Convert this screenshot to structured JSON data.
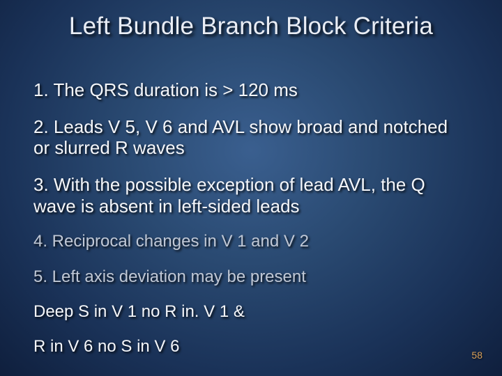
{
  "title": {
    "text": "Left Bundle Branch Block Criteria",
    "color": "#e9edf5",
    "fontsize": 35
  },
  "items": [
    {
      "text": "1. The QRS duration is > 120 ms",
      "emphasis": "bright",
      "fontsize": 26
    },
    {
      "text": "2. Leads V 5, V 6 and AVL show broad and notched or slurred R waves",
      "emphasis": "bright",
      "fontsize": 26
    },
    {
      "text": "3. With the possible exception of lead AVL, the Q wave is absent in left-sided leads",
      "emphasis": "bright",
      "fontsize": 26
    },
    {
      "text": "4. Reciprocal changes in V 1 and V 2",
      "emphasis": "muted",
      "fontsize": 24
    },
    {
      "text": "5. Left axis deviation may be present",
      "emphasis": "muted",
      "fontsize": 24
    }
  ],
  "extras": [
    {
      "text": "Deep S in V 1 no R in. V 1 &",
      "emphasis": "bright",
      "fontsize": 24
    },
    {
      "text": "R in V 6 no S in V 6",
      "emphasis": "bright",
      "fontsize": 24
    }
  ],
  "page_number": "58",
  "colors": {
    "bright": "#f4f6fa",
    "muted": "#c0c8d6",
    "page_num": "#d8a05a"
  }
}
